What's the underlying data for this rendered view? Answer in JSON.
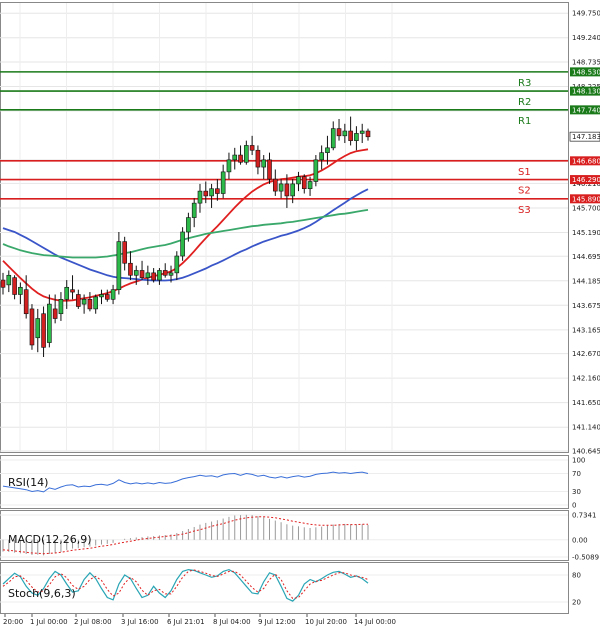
{
  "chart_data": {
    "type": "candlestick",
    "instrument_panel": {
      "y_ticks": [
        "149.750",
        "149.240",
        "148.735",
        "148.225",
        "147.720",
        "147.183",
        "146.700",
        "146.210",
        "145.700",
        "145.190",
        "144.695",
        "144.185",
        "143.675",
        "143.165",
        "142.670",
        "142.160",
        "141.650",
        "141.140",
        "140.645"
      ],
      "ylim": [
        140.645,
        149.9
      ],
      "current_price": "147.183",
      "candles": [
        {
          "o": 144.2,
          "h": 144.35,
          "l": 143.9,
          "c": 144.05
        },
        {
          "o": 144.1,
          "h": 144.4,
          "l": 143.95,
          "c": 144.3
        },
        {
          "o": 144.25,
          "h": 144.3,
          "l": 143.8,
          "c": 143.9
        },
        {
          "o": 143.9,
          "h": 144.15,
          "l": 143.7,
          "c": 144.05
        },
        {
          "o": 144.0,
          "h": 144.3,
          "l": 143.4,
          "c": 143.5
        },
        {
          "o": 143.6,
          "h": 143.7,
          "l": 142.75,
          "c": 142.85
        },
        {
          "o": 143.0,
          "h": 143.6,
          "l": 142.7,
          "c": 143.4
        },
        {
          "o": 143.5,
          "h": 143.65,
          "l": 142.6,
          "c": 142.8
        },
        {
          "o": 142.9,
          "h": 143.9,
          "l": 142.8,
          "c": 143.7
        },
        {
          "o": 143.6,
          "h": 143.9,
          "l": 143.3,
          "c": 143.4
        },
        {
          "o": 143.5,
          "h": 143.95,
          "l": 143.35,
          "c": 143.8
        },
        {
          "o": 143.8,
          "h": 144.2,
          "l": 143.6,
          "c": 144.05
        },
        {
          "o": 144.0,
          "h": 144.3,
          "l": 143.8,
          "c": 143.95
        },
        {
          "o": 143.9,
          "h": 144.0,
          "l": 143.6,
          "c": 143.65
        },
        {
          "o": 143.7,
          "h": 143.9,
          "l": 143.5,
          "c": 143.8
        },
        {
          "o": 143.8,
          "h": 143.95,
          "l": 143.55,
          "c": 143.6
        },
        {
          "o": 143.6,
          "h": 143.9,
          "l": 143.5,
          "c": 143.85
        },
        {
          "o": 143.85,
          "h": 144.0,
          "l": 143.7,
          "c": 143.9
        },
        {
          "o": 143.9,
          "h": 144.0,
          "l": 143.75,
          "c": 143.8
        },
        {
          "o": 143.8,
          "h": 144.1,
          "l": 143.7,
          "c": 144.0
        },
        {
          "o": 144.0,
          "h": 145.2,
          "l": 143.9,
          "c": 145.0
        },
        {
          "o": 145.0,
          "h": 145.1,
          "l": 144.4,
          "c": 144.55
        },
        {
          "o": 144.55,
          "h": 144.8,
          "l": 144.2,
          "c": 144.3
        },
        {
          "o": 144.3,
          "h": 144.5,
          "l": 144.1,
          "c": 144.4
        },
        {
          "o": 144.4,
          "h": 144.6,
          "l": 144.2,
          "c": 144.25
        },
        {
          "o": 144.25,
          "h": 144.5,
          "l": 144.1,
          "c": 144.35
        },
        {
          "o": 144.35,
          "h": 144.45,
          "l": 144.15,
          "c": 144.2
        },
        {
          "o": 144.2,
          "h": 144.45,
          "l": 144.1,
          "c": 144.4
        },
        {
          "o": 144.4,
          "h": 144.55,
          "l": 144.25,
          "c": 144.3
        },
        {
          "o": 144.3,
          "h": 144.5,
          "l": 144.15,
          "c": 144.35
        },
        {
          "o": 144.35,
          "h": 144.8,
          "l": 144.2,
          "c": 144.7
        },
        {
          "o": 144.7,
          "h": 145.3,
          "l": 144.6,
          "c": 145.2
        },
        {
          "o": 145.2,
          "h": 145.6,
          "l": 145.0,
          "c": 145.5
        },
        {
          "o": 145.5,
          "h": 145.9,
          "l": 145.3,
          "c": 145.8
        },
        {
          "o": 145.8,
          "h": 146.2,
          "l": 145.6,
          "c": 146.05
        },
        {
          "o": 146.05,
          "h": 146.25,
          "l": 145.8,
          "c": 145.95
        },
        {
          "o": 145.95,
          "h": 146.2,
          "l": 145.7,
          "c": 146.1
        },
        {
          "o": 146.1,
          "h": 146.3,
          "l": 145.85,
          "c": 146.0
        },
        {
          "o": 146.0,
          "h": 146.6,
          "l": 145.9,
          "c": 146.45
        },
        {
          "o": 146.45,
          "h": 146.85,
          "l": 146.3,
          "c": 146.7
        },
        {
          "o": 146.7,
          "h": 146.95,
          "l": 146.5,
          "c": 146.8
        },
        {
          "o": 146.8,
          "h": 147.0,
          "l": 146.6,
          "c": 146.65
        },
        {
          "o": 146.65,
          "h": 147.1,
          "l": 146.6,
          "c": 147.0
        },
        {
          "o": 147.0,
          "h": 147.2,
          "l": 146.8,
          "c": 146.9
        },
        {
          "o": 146.9,
          "h": 147.0,
          "l": 146.4,
          "c": 146.55
        },
        {
          "o": 146.55,
          "h": 146.8,
          "l": 146.3,
          "c": 146.7
        },
        {
          "o": 146.7,
          "h": 146.85,
          "l": 146.2,
          "c": 146.3
        },
        {
          "o": 146.3,
          "h": 146.5,
          "l": 145.95,
          "c": 146.05
        },
        {
          "o": 146.05,
          "h": 146.3,
          "l": 145.9,
          "c": 146.2
        },
        {
          "o": 146.2,
          "h": 146.4,
          "l": 145.7,
          "c": 145.95
        },
        {
          "o": 145.95,
          "h": 146.3,
          "l": 145.8,
          "c": 146.2
        },
        {
          "o": 146.2,
          "h": 146.45,
          "l": 146.05,
          "c": 146.35
        },
        {
          "o": 146.35,
          "h": 146.4,
          "l": 146.0,
          "c": 146.1
        },
        {
          "o": 146.1,
          "h": 146.35,
          "l": 145.95,
          "c": 146.25
        },
        {
          "o": 146.25,
          "h": 146.8,
          "l": 146.15,
          "c": 146.7
        },
        {
          "o": 146.7,
          "h": 147.0,
          "l": 146.5,
          "c": 146.85
        },
        {
          "o": 146.85,
          "h": 147.2,
          "l": 146.6,
          "c": 146.95
        },
        {
          "o": 146.95,
          "h": 147.5,
          "l": 146.9,
          "c": 147.35
        },
        {
          "o": 147.35,
          "h": 147.55,
          "l": 147.1,
          "c": 147.2
        },
        {
          "o": 147.2,
          "h": 147.45,
          "l": 147.05,
          "c": 147.3
        },
        {
          "o": 147.3,
          "h": 147.6,
          "l": 147.0,
          "c": 147.1
        },
        {
          "o": 147.1,
          "h": 147.4,
          "l": 146.9,
          "c": 147.25
        },
        {
          "o": 147.25,
          "h": 147.45,
          "l": 147.05,
          "c": 147.3
        },
        {
          "o": 147.3,
          "h": 147.35,
          "l": 147.1,
          "c": 147.18
        }
      ],
      "moving_averages": [
        {
          "color": "#e02020",
          "values": [
            144.6,
            144.48,
            144.36,
            144.24,
            144.13,
            144.02,
            143.93,
            143.86,
            143.82,
            143.79,
            143.77,
            143.77,
            143.78,
            143.8,
            143.82,
            143.84,
            143.87,
            143.9,
            143.93,
            143.97,
            144.02,
            144.08,
            144.13,
            144.17,
            144.21,
            144.25,
            144.28,
            144.31,
            144.34,
            144.38,
            144.45,
            144.55,
            144.67,
            144.8,
            144.94,
            145.07,
            145.2,
            145.32,
            145.45,
            145.58,
            145.71,
            145.83,
            145.94,
            146.04,
            146.12,
            146.19,
            146.24,
            146.27,
            146.3,
            146.31,
            146.33,
            146.35,
            146.36,
            146.38,
            146.42,
            146.48,
            146.55,
            146.63,
            146.71,
            146.78,
            146.84,
            146.88,
            146.9,
            146.92
          ]
        },
        {
          "color": "#3a55c8",
          "values": [
            145.28,
            145.24,
            145.2,
            145.14,
            145.08,
            145.01,
            144.94,
            144.87,
            144.8,
            144.73,
            144.67,
            144.62,
            144.57,
            144.52,
            144.47,
            144.42,
            144.38,
            144.34,
            144.3,
            144.27,
            144.25,
            144.24,
            144.23,
            144.22,
            144.21,
            144.2,
            144.19,
            144.19,
            144.19,
            144.2,
            144.22,
            144.25,
            144.29,
            144.34,
            144.39,
            144.44,
            144.5,
            144.55,
            144.61,
            144.67,
            144.73,
            144.79,
            144.84,
            144.9,
            144.95,
            145.0,
            145.04,
            145.08,
            145.12,
            145.15,
            145.19,
            145.23,
            145.28,
            145.34,
            145.41,
            145.49,
            145.57,
            145.65,
            145.73,
            145.81,
            145.89,
            145.96,
            146.03,
            146.09
          ]
        },
        {
          "color": "#3aa86a",
          "values": [
            144.95,
            144.9,
            144.86,
            144.82,
            144.79,
            144.76,
            144.74,
            144.72,
            144.71,
            144.7,
            144.69,
            144.68,
            144.67,
            144.67,
            144.67,
            144.67,
            144.67,
            144.68,
            144.69,
            144.71,
            144.73,
            144.76,
            144.78,
            144.81,
            144.84,
            144.87,
            144.89,
            144.91,
            144.93,
            144.96,
            145.0,
            145.04,
            145.07,
            145.1,
            145.13,
            145.16,
            145.18,
            145.2,
            145.22,
            145.24,
            145.26,
            145.28,
            145.3,
            145.32,
            145.33,
            145.35,
            145.36,
            145.37,
            145.38,
            145.4,
            145.41,
            145.43,
            145.45,
            145.47,
            145.49,
            145.51,
            145.53,
            145.55,
            145.57,
            145.58,
            145.6,
            145.62,
            145.64,
            145.66
          ]
        }
      ],
      "levels": [
        {
          "name": "R3",
          "value": 148.53,
          "label": "148.530",
          "color": "#1a7a1a"
        },
        {
          "name": "R2",
          "value": 148.13,
          "label": "148.130",
          "color": "#1a7a1a"
        },
        {
          "name": "R1",
          "value": 147.74,
          "label": "147.740",
          "color": "#1a7a1a"
        },
        {
          "name": "S1",
          "value": 146.68,
          "label": "146.680",
          "color": "#d81e1e"
        },
        {
          "name": "S2",
          "value": 146.29,
          "label": "146.290",
          "color": "#d81e1e"
        },
        {
          "name": "S3",
          "value": 145.89,
          "label": "145.890",
          "color": "#d81e1e"
        }
      ]
    },
    "x_ticks": [
      "20:00",
      "1 Jul 00:00",
      "2 Jul 08:00",
      "3 Jul 16:00",
      "6 Jul 21:01",
      "8 Jul 04:00",
      "9 Jul 12:00",
      "10 Jul 20:00",
      "14 Jul 00:00"
    ],
    "rsi": {
      "label": "RSI(14)",
      "y_ticks": [
        "100",
        "70",
        "30",
        "0"
      ],
      "ylim": [
        0,
        100
      ],
      "color": "#3a6fd8",
      "values": [
        42,
        40,
        38,
        36,
        34,
        30,
        32,
        29,
        38,
        35,
        40,
        44,
        45,
        40,
        42,
        41,
        45,
        46,
        44,
        48,
        56,
        50,
        47,
        49,
        47,
        49,
        47,
        50,
        48,
        49,
        53,
        58,
        61,
        63,
        66,
        64,
        65,
        62,
        67,
        69,
        70,
        66,
        70,
        68,
        64,
        66,
        62,
        60,
        63,
        60,
        63,
        65,
        62,
        64,
        68,
        70,
        71,
        73,
        71,
        72,
        70,
        72,
        73,
        70
      ]
    },
    "macd": {
      "label": "MACD(12,26,9)",
      "y_ticks": [
        "0.7341",
        "0.00",
        "-0.5089"
      ],
      "ylim": [
        -0.5089,
        0.7341
      ],
      "histogram_color": "#9a9a9a",
      "signal_color": "#e02020",
      "histogram": [
        -0.35,
        -0.36,
        -0.38,
        -0.4,
        -0.42,
        -0.45,
        -0.44,
        -0.46,
        -0.42,
        -0.4,
        -0.36,
        -0.3,
        -0.26,
        -0.25,
        -0.22,
        -0.2,
        -0.17,
        -0.14,
        -0.12,
        -0.09,
        0.0,
        0.03,
        0.05,
        0.07,
        0.08,
        0.1,
        0.11,
        0.13,
        0.14,
        0.16,
        0.2,
        0.26,
        0.32,
        0.38,
        0.45,
        0.5,
        0.54,
        0.58,
        0.63,
        0.68,
        0.72,
        0.73,
        0.74,
        0.73,
        0.7,
        0.67,
        0.62,
        0.57,
        0.52,
        0.46,
        0.42,
        0.4,
        0.37,
        0.35,
        0.37,
        0.39,
        0.42,
        0.45,
        0.46,
        0.47,
        0.46,
        0.46,
        0.46,
        0.44
      ],
      "signal": [
        -0.3,
        -0.31,
        -0.33,
        -0.35,
        -0.37,
        -0.39,
        -0.4,
        -0.41,
        -0.4,
        -0.39,
        -0.37,
        -0.34,
        -0.31,
        -0.29,
        -0.27,
        -0.25,
        -0.22,
        -0.19,
        -0.17,
        -0.14,
        -0.1,
        -0.07,
        -0.04,
        -0.01,
        0.02,
        0.04,
        0.06,
        0.08,
        0.1,
        0.12,
        0.14,
        0.17,
        0.21,
        0.26,
        0.3,
        0.35,
        0.4,
        0.44,
        0.48,
        0.53,
        0.58,
        0.62,
        0.65,
        0.67,
        0.68,
        0.68,
        0.67,
        0.65,
        0.62,
        0.59,
        0.55,
        0.52,
        0.49,
        0.46,
        0.44,
        0.43,
        0.43,
        0.43,
        0.44,
        0.45,
        0.45,
        0.45,
        0.46,
        0.46
      ]
    },
    "stoch": {
      "label": "Stoch(9,6,3)",
      "y_ticks": [
        "80",
        "20"
      ],
      "ylim": [
        0,
        100
      ],
      "main_color": "#2aa5b5",
      "signal_color": "#e02020",
      "main": [
        60,
        72,
        84,
        76,
        55,
        40,
        35,
        50,
        72,
        88,
        80,
        60,
        42,
        45,
        70,
        85,
        72,
        50,
        30,
        25,
        60,
        80,
        72,
        50,
        30,
        35,
        55,
        40,
        30,
        45,
        70,
        88,
        92,
        90,
        85,
        80,
        75,
        78,
        88,
        92,
        85,
        70,
        55,
        40,
        38,
        65,
        85,
        80,
        55,
        28,
        22,
        35,
        60,
        70,
        65,
        72,
        80,
        86,
        88,
        82,
        75,
        78,
        72,
        62
      ],
      "signal": [
        55,
        64,
        76,
        78,
        68,
        53,
        42,
        45,
        58,
        76,
        83,
        74,
        57,
        48,
        55,
        70,
        77,
        68,
        48,
        33,
        40,
        62,
        75,
        65,
        46,
        35,
        45,
        48,
        38,
        38,
        55,
        75,
        88,
        91,
        88,
        84,
        79,
        77,
        82,
        88,
        88,
        80,
        66,
        52,
        42,
        50,
        70,
        82,
        70,
        45,
        28,
        30,
        45,
        60,
        66,
        68,
        74,
        80,
        85,
        85,
        80,
        77,
        75,
        70
      ]
    }
  }
}
